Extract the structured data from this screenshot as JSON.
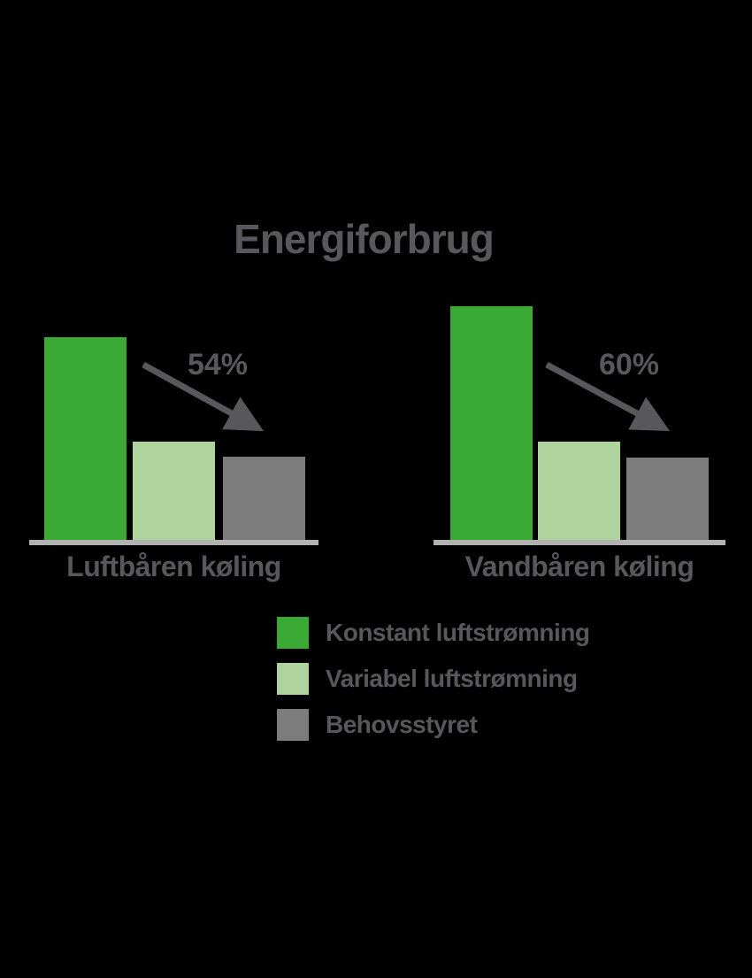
{
  "page": {
    "background_color": "#000000",
    "text_color": "#58585a"
  },
  "chart_data": {
    "type": "bar",
    "title": "Energiforbrug",
    "series": [
      {
        "name": "Konstant luftstrømning",
        "color": "#3aaa35"
      },
      {
        "name": "Variabel luftstrømning",
        "color": "#afd39c"
      },
      {
        "name": "Behovsstyret",
        "color": "#7c7c7c"
      }
    ],
    "groups": [
      {
        "label": "Luftbåren køling",
        "reduction": "54%",
        "values": [
          100,
          48.5,
          41
        ]
      },
      {
        "label": "Vandbåren køling",
        "reduction": "60%",
        "values": [
          115.3,
          48.5,
          40.6
        ]
      }
    ],
    "value_unit": "relative energy use, Konstant/Luftbåren = 100 (no y-axis shown)",
    "annotations": [
      {
        "group": "Luftbåren køling",
        "text": "54%",
        "shape": "arrow-down-right"
      },
      {
        "group": "Vandbåren køling",
        "text": "60%",
        "shape": "arrow-down-right"
      }
    ],
    "legend_position": "bottom-center",
    "grid": false,
    "baseline_color": "#b2b2b2",
    "arrow_color": "#58585a"
  }
}
